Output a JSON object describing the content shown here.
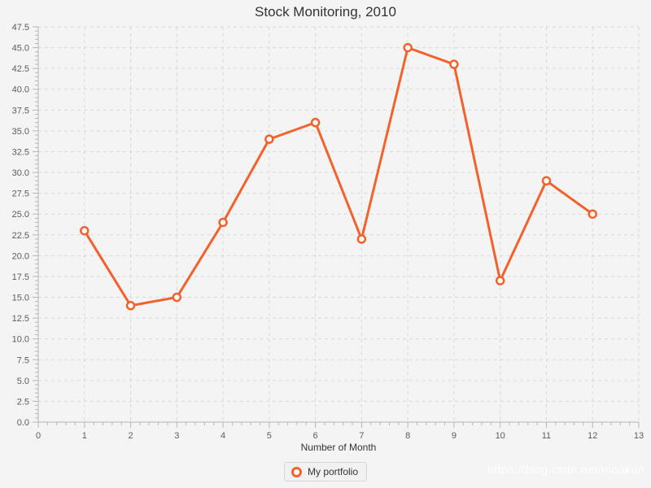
{
  "chart_data": {
    "type": "line",
    "title": "Stock Monitoring, 2010",
    "xlabel": "Number of Month",
    "ylabel": "",
    "xlim": [
      0,
      13
    ],
    "ylim": [
      0,
      47.5
    ],
    "xtick_labels": [
      "0",
      "1",
      "2",
      "3",
      "4",
      "5",
      "6",
      "7",
      "8",
      "9",
      "10",
      "11",
      "12",
      "13"
    ],
    "ytick_labels": [
      "0.0",
      "2.5",
      "5.0",
      "7.5",
      "10.0",
      "12.5",
      "15.0",
      "17.5",
      "20.0",
      "22.5",
      "25.0",
      "27.5",
      "30.0",
      "32.5",
      "35.0",
      "37.5",
      "40.0",
      "42.5",
      "45.0",
      "47.5"
    ],
    "minor_tick_divisions": 5,
    "grid": true,
    "grid_style": "dashed",
    "legend_position": "bottom",
    "marker_style": "open-circle",
    "series": [
      {
        "name": "My portfolio",
        "x": [
          1,
          2,
          3,
          4,
          5,
          6,
          7,
          8,
          9,
          10,
          11,
          12
        ],
        "values": [
          23,
          14,
          15,
          24,
          34,
          36,
          22,
          45,
          43,
          17,
          29,
          25
        ]
      }
    ],
    "watermark": "https://blog.csdn.net/moakun",
    "colors": {
      "series": "#f3622d",
      "marker_fill": "#ffffff",
      "background": "#f4f4f4",
      "grid": "#d9d9d9",
      "axis": "#b5b5b5",
      "title_text": "#333333",
      "tick_text": "#5c5c5c"
    }
  }
}
